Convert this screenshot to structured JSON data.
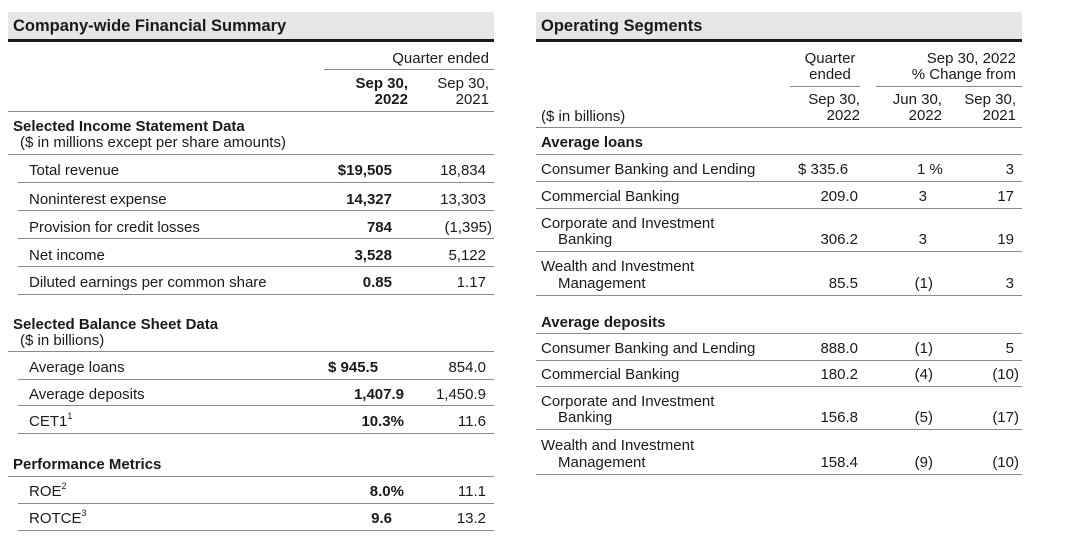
{
  "left": {
    "title": "Company-wide Financial Summary",
    "quarter_ended": "Quarter ended",
    "col1_line1": "Sep 30,",
    "col1_line2": "2022",
    "col2_line1": "Sep 30,",
    "col2_line2": "2021",
    "income": {
      "heading": "Selected Income Statement Data",
      "subheading": "($ in millions except per share amounts)",
      "rows": [
        {
          "label": "Total revenue",
          "v2022": "$19,505",
          "v2021": "18,834"
        },
        {
          "label": "Noninterest expense",
          "v2022": "14,327",
          "v2021": "13,303"
        },
        {
          "label": "Provision for credit losses",
          "v2022": "784",
          "v2021": "(1,395)"
        },
        {
          "label": "Net income",
          "v2022": "3,528",
          "v2021": "5,122"
        },
        {
          "label": "Diluted earnings per common share",
          "v2022": "0.85",
          "v2021": "1.17"
        }
      ]
    },
    "balance": {
      "heading": "Selected Balance Sheet Data",
      "subheading": "($ in billions)",
      "rows": [
        {
          "label": "Average loans",
          "sup": "",
          "v2022": "$ 945.5",
          "v2021": "854.0"
        },
        {
          "label": "Average deposits",
          "sup": "",
          "v2022": "1,407.9",
          "v2021": "1,450.9"
        },
        {
          "label": "CET1",
          "sup": "1",
          "v2022": "10.3%",
          "v2021": "11.6"
        }
      ]
    },
    "performance": {
      "heading": "Performance Metrics",
      "rows": [
        {
          "label": "ROE",
          "sup": "2",
          "v2022": "8.0%",
          "v2021": "11.1"
        },
        {
          "label": "ROTCE",
          "sup": "3",
          "v2022": "9.6",
          "v2021": "13.2"
        }
      ]
    }
  },
  "right": {
    "title": "Operating Segments",
    "units": "($ in billions)",
    "quarter_ended_line1": "Quarter",
    "quarter_ended_line2": "ended",
    "change_line1": "Sep 30, 2022",
    "change_line2": "% Change from",
    "col_q_line1": "Sep 30,",
    "col_q_line2": "2022",
    "col_jun_line1": "Jun 30,",
    "col_jun_line2": "2022",
    "col_sep_line1": "Sep 30,",
    "col_sep_line2": "2021",
    "loans": {
      "heading": "Average loans",
      "rows": [
        {
          "label1": "Consumer Banking and Lending",
          "label2": "",
          "value": "$ 335.6",
          "jun": "1 %",
          "sep": "3"
        },
        {
          "label1": "Commercial Banking",
          "label2": "",
          "value": "209.0",
          "jun": "3",
          "sep": "17"
        },
        {
          "label1": "Corporate and Investment",
          "label2": "Banking",
          "value": "306.2",
          "jun": "3",
          "sep": "19"
        },
        {
          "label1": "Wealth and Investment",
          "label2": "Management",
          "value": "85.5",
          "jun": "(1)",
          "sep": "3"
        }
      ]
    },
    "deposits": {
      "heading": "Average deposits",
      "rows": [
        {
          "label1": "Consumer Banking and Lending",
          "label2": "",
          "value": "888.0",
          "jun": "(1)",
          "sep": "5"
        },
        {
          "label1": "Commercial Banking",
          "label2": "",
          "value": "180.2",
          "jun": "(4)",
          "sep": "(10)"
        },
        {
          "label1": "Corporate and Investment",
          "label2": "Banking",
          "value": "156.8",
          "jun": "(5)",
          "sep": "(17)"
        },
        {
          "label1": "Wealth and Investment",
          "label2": "Management",
          "value": "158.4",
          "jun": "(9)",
          "sep": "(10)"
        }
      ]
    }
  }
}
